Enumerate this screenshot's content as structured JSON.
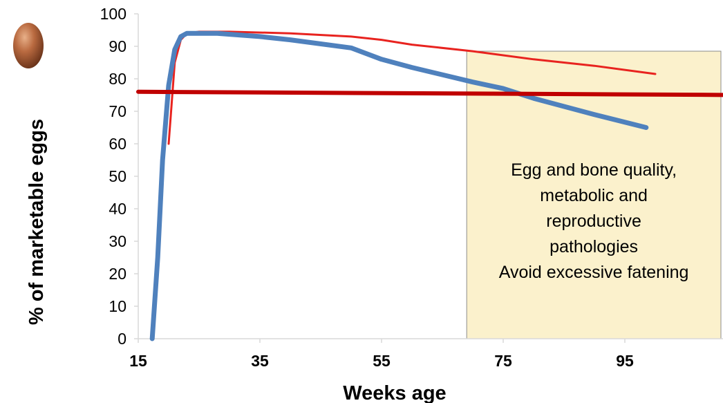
{
  "chart_data": {
    "type": "line",
    "xlabel": "Weeks age",
    "ylabel": "% of marketable eggs",
    "xlim": [
      15,
      115
    ],
    "ylim": [
      0,
      100
    ],
    "x_ticks": [
      15,
      35,
      55,
      75,
      95
    ],
    "y_ticks": [
      0,
      10,
      20,
      30,
      40,
      50,
      60,
      70,
      80,
      90,
      100
    ],
    "series": [
      {
        "color": "#e8231f",
        "points": [
          [
            20,
            60
          ],
          [
            21,
            85
          ],
          [
            22,
            92
          ],
          [
            23,
            94
          ],
          [
            25,
            94.5
          ],
          [
            30,
            94.5
          ],
          [
            40,
            94
          ],
          [
            50,
            93
          ],
          [
            55,
            92
          ],
          [
            60,
            90.5
          ],
          [
            70,
            88.5
          ],
          [
            80,
            86
          ],
          [
            90,
            84
          ],
          [
            100,
            81.5
          ]
        ]
      },
      {
        "color": "#4f81bd",
        "points": [
          [
            17.3,
            0
          ],
          [
            18.2,
            25
          ],
          [
            19,
            55
          ],
          [
            20,
            78
          ],
          [
            21,
            89
          ],
          [
            22,
            93
          ],
          [
            23,
            94
          ],
          [
            28,
            94
          ],
          [
            35,
            93
          ],
          [
            40,
            92
          ],
          [
            50,
            89.5
          ],
          [
            55,
            86
          ],
          [
            60,
            83.5
          ],
          [
            70,
            79
          ],
          [
            75,
            77
          ],
          [
            80,
            74
          ],
          [
            90,
            69
          ],
          [
            98.5,
            65
          ]
        ]
      },
      {
        "color": "#c00000",
        "points": [
          [
            15,
            76
          ],
          [
            115,
            75
          ]
        ]
      }
    ],
    "annotation": {
      "lines": [
        "Egg and bone quality,",
        "metabolic and",
        "reproductive",
        "pathologies",
        "Avoid excessive fatening"
      ],
      "fill": "#fbf1cc",
      "x_range": [
        69,
        115
      ],
      "y_range": [
        0,
        88.5
      ]
    },
    "icon": "egg-icon",
    "colors": {
      "axis": "#d9d9d9",
      "text": "#000000"
    }
  }
}
